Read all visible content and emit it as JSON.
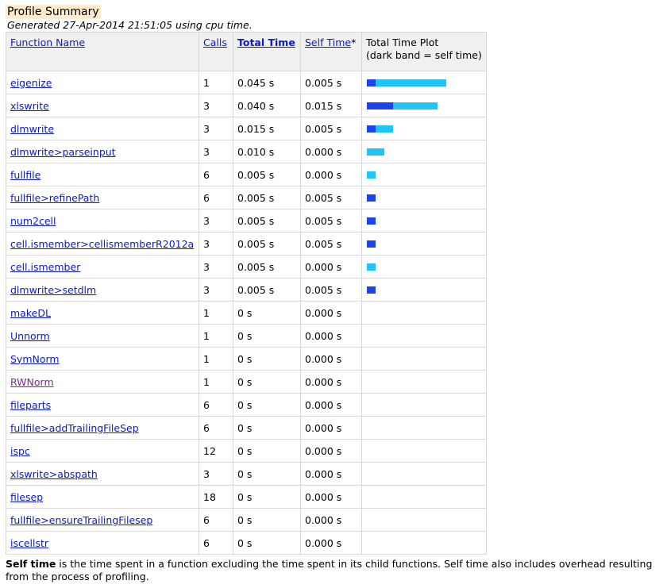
{
  "header": {
    "title": "Profile Summary",
    "subtitle": "Generated 27-Apr-2014 21:51:05 using cpu time."
  },
  "table": {
    "headers": {
      "function_name": "Function Name",
      "calls": "Calls",
      "total_time": "Total Time",
      "self_time": "Self Time",
      "self_time_marker": "*",
      "plot_title": "Total Time Plot",
      "plot_subtitle": "(dark band = self time)"
    },
    "plot_scale_max_seconds": 0.045,
    "rows": [
      {
        "name": "eigenize",
        "calls": "1",
        "total": "0.045 s",
        "self": "0.005 s",
        "total_value": 0.045,
        "self_value": 0.005,
        "visited": false
      },
      {
        "name": "xlswrite",
        "calls": "3",
        "total": "0.040 s",
        "self": "0.015 s",
        "total_value": 0.04,
        "self_value": 0.015,
        "visited": false
      },
      {
        "name": "dlmwrite",
        "calls": "3",
        "total": "0.015 s",
        "self": "0.005 s",
        "total_value": 0.015,
        "self_value": 0.005,
        "visited": false
      },
      {
        "name": "dlmwrite>parseinput",
        "calls": "3",
        "total": "0.010 s",
        "self": "0.000 s",
        "total_value": 0.01,
        "self_value": 0.0,
        "visited": false
      },
      {
        "name": "fullfile",
        "calls": "6",
        "total": "0.005 s",
        "self": "0.000 s",
        "total_value": 0.005,
        "self_value": 0.0,
        "visited": false
      },
      {
        "name": "fullfile>refinePath",
        "calls": "6",
        "total": "0.005 s",
        "self": "0.005 s",
        "total_value": 0.005,
        "self_value": 0.005,
        "visited": false
      },
      {
        "name": "num2cell",
        "calls": "3",
        "total": "0.005 s",
        "self": "0.005 s",
        "total_value": 0.005,
        "self_value": 0.005,
        "visited": false
      },
      {
        "name": "cell.ismember>cellismemberR2012a",
        "calls": "3",
        "total": "0.005 s",
        "self": "0.005 s",
        "total_value": 0.005,
        "self_value": 0.005,
        "visited": false
      },
      {
        "name": "cell.ismember",
        "calls": "3",
        "total": "0.005 s",
        "self": "0.000 s",
        "total_value": 0.005,
        "self_value": 0.0,
        "visited": false
      },
      {
        "name": "dlmwrite>setdlm",
        "calls": "3",
        "total": "0.005 s",
        "self": "0.005 s",
        "total_value": 0.005,
        "self_value": 0.005,
        "visited": false
      },
      {
        "name": "makeDL",
        "calls": "1",
        "total": "0 s",
        "self": "0.000 s",
        "total_value": 0,
        "self_value": 0,
        "visited": false
      },
      {
        "name": "Unnorm",
        "calls": "1",
        "total": "0 s",
        "self": "0.000 s",
        "total_value": 0,
        "self_value": 0,
        "visited": false
      },
      {
        "name": "SymNorm",
        "calls": "1",
        "total": "0 s",
        "self": "0.000 s",
        "total_value": 0,
        "self_value": 0,
        "visited": false
      },
      {
        "name": "RWNorm",
        "calls": "1",
        "total": "0 s",
        "self": "0.000 s",
        "total_value": 0,
        "self_value": 0,
        "visited": true
      },
      {
        "name": "fileparts",
        "calls": "6",
        "total": "0 s",
        "self": "0.000 s",
        "total_value": 0,
        "self_value": 0,
        "visited": false
      },
      {
        "name": "fullfile>addTrailingFileSep",
        "calls": "6",
        "total": "0 s",
        "self": "0.000 s",
        "total_value": 0,
        "self_value": 0,
        "visited": false
      },
      {
        "name": "ispc",
        "calls": "12",
        "total": "0 s",
        "self": "0.000 s",
        "total_value": 0,
        "self_value": 0,
        "visited": false
      },
      {
        "name": "xlswrite>abspath",
        "calls": "3",
        "total": "0 s",
        "self": "0.000 s",
        "total_value": 0,
        "self_value": 0,
        "visited": false
      },
      {
        "name": "filesep",
        "calls": "18",
        "total": "0 s",
        "self": "0.000 s",
        "total_value": 0,
        "self_value": 0,
        "visited": false
      },
      {
        "name": "fullfile>ensureTrailingFilesep",
        "calls": "6",
        "total": "0 s",
        "self": "0.000 s",
        "total_value": 0,
        "self_value": 0,
        "visited": false
      },
      {
        "name": "iscellstr",
        "calls": "6",
        "total": "0 s",
        "self": "0.000 s",
        "total_value": 0,
        "self_value": 0,
        "visited": false
      }
    ]
  },
  "footnote": {
    "term": "Self time",
    "text": " is the time spent in a function excluding the time spent in its child functions. Self time also includes overhead resulting from the process of profiling."
  },
  "colors": {
    "self_band": "#1c43ec",
    "child_band": "#21c4f6",
    "link": "#0a1ac8",
    "visited_link": "#7b2a8c",
    "title_bg": "#fdebcb"
  }
}
